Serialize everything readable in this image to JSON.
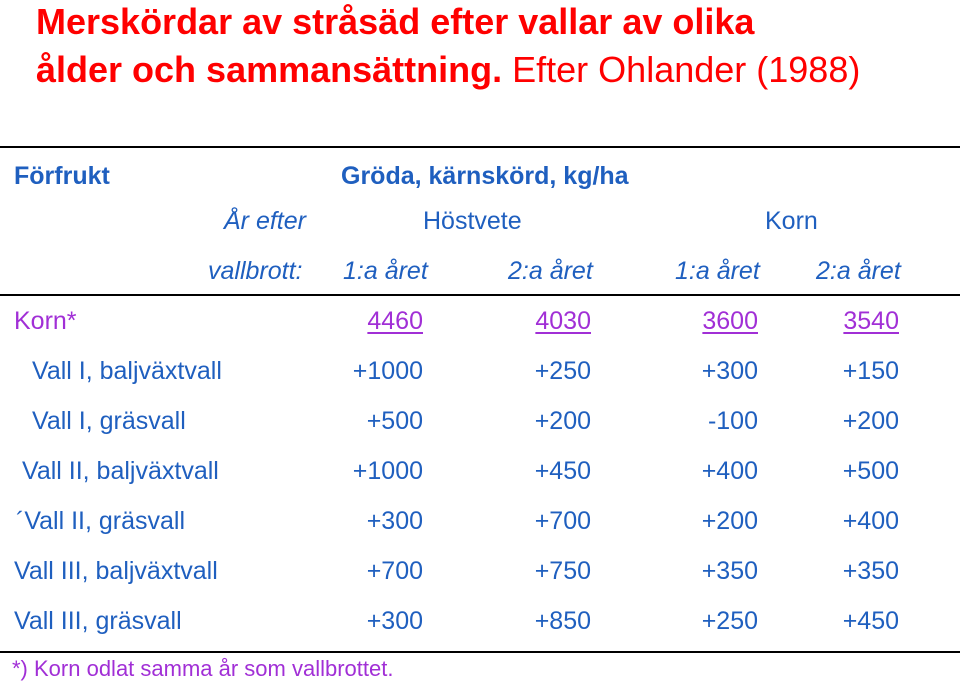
{
  "title": {
    "bold_text": "Merskördar av stråsäd efter vallar av olika",
    "line2_bold": "ålder och sammansättning.",
    "line2_normal": "Efter Ohlander (1988)"
  },
  "header": {
    "forfrukt": "Förfrukt",
    "groda": "Gröda, kärnskörd, kg/ha",
    "ar_efter": "År efter",
    "vallbrott": "vallbrott:",
    "hostvete": "Höstvete",
    "korn": "Korn",
    "col1": "1:a året",
    "col2": "2:a året",
    "col3": "1:a året",
    "col4": "2:a året"
  },
  "rows": [
    {
      "label": "Korn*",
      "values": [
        "4460",
        "4030",
        "3600",
        "3540"
      ]
    },
    {
      "label": "Vall I, baljväxtvall",
      "values": [
        "+1000",
        "+250",
        "+300",
        "+150"
      ]
    },
    {
      "label": "Vall I, gräsvall",
      "values": [
        "+500",
        "+200",
        "-100",
        "+200"
      ]
    },
    {
      "label": "Vall II, baljväxtvall",
      "values": [
        "+1000",
        "+450",
        "+400",
        "+500"
      ]
    },
    {
      "label": "´Vall II, gräsvall",
      "values": [
        "+300",
        "+700",
        "+200",
        "+400"
      ]
    },
    {
      "label": "Vall III, baljväxtvall",
      "values": [
        "+700",
        "+750",
        "+350",
        "+350"
      ]
    },
    {
      "label": "Vall III, gräsvall",
      "values": [
        "+300",
        "+850",
        "+250",
        "+450"
      ]
    }
  ],
  "footnote": "*) Korn odlat samma år som vallbrottet.",
  "colors": {
    "title": "#ff0000",
    "text": "#1f5fbf",
    "korn_row": "#a12fd6",
    "rules": "#000000"
  }
}
